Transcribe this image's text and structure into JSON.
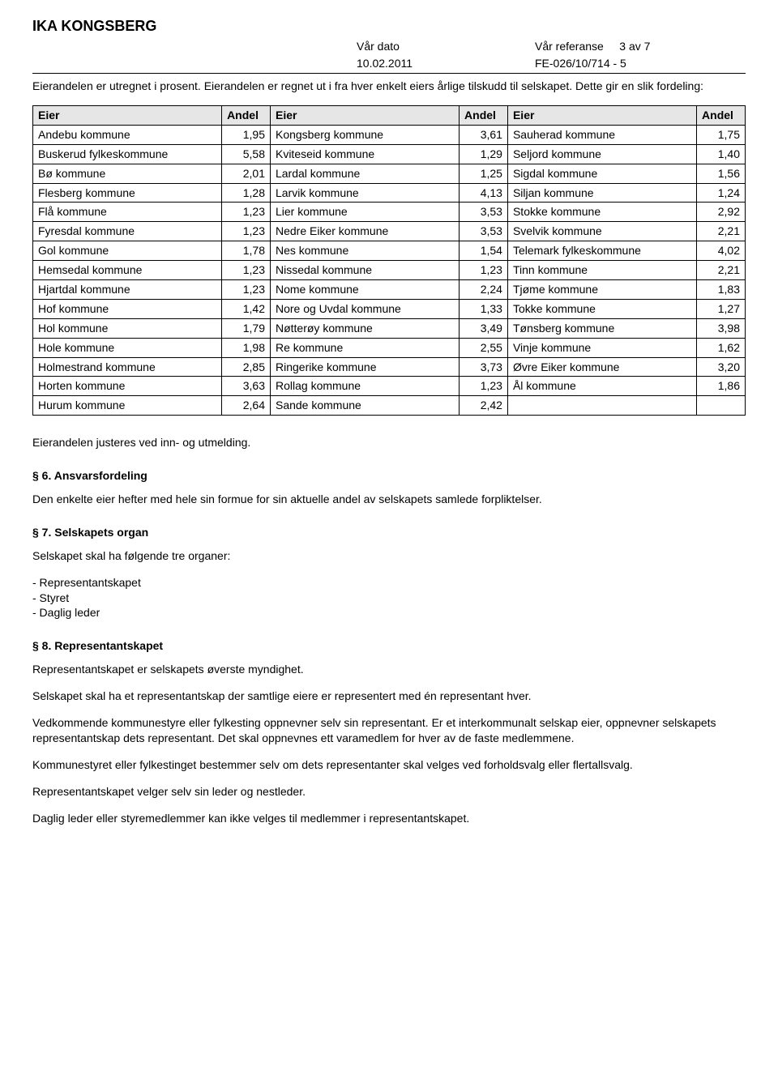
{
  "header": {
    "org": "IKA KONGSBERG",
    "date_label": "Vår dato",
    "date_value": "10.02.2011",
    "ref_label": "Vår referanse",
    "ref_value": "FE-026/10/714 - 5",
    "page": "3 av 7"
  },
  "intro": {
    "line1": "Eierandelen er utregnet i prosent. Eierandelen er regnet ut i fra hver enkelt eiers årlige tilskudd til selskapet. Dette gir en slik fordeling:"
  },
  "table": {
    "header_bg": "#e6e6e6",
    "border_color": "#000000",
    "columns": [
      "Eier",
      "Andel",
      "Eier",
      "Andel",
      "Eier",
      "Andel"
    ],
    "rows": [
      [
        "Andebu kommune",
        "1,95",
        "Kongsberg kommune",
        "3,61",
        "Sauherad kommune",
        "1,75"
      ],
      [
        "Buskerud fylkeskommune",
        "5,58",
        "Kviteseid kommune",
        "1,29",
        "Seljord kommune",
        "1,40"
      ],
      [
        "Bø kommune",
        "2,01",
        "Lardal kommune",
        "1,25",
        "Sigdal kommune",
        "1,56"
      ],
      [
        "Flesberg kommune",
        "1,28",
        "Larvik kommune",
        "4,13",
        "Siljan kommune",
        "1,24"
      ],
      [
        "Flå kommune",
        "1,23",
        "Lier kommune",
        "3,53",
        "Stokke kommune",
        "2,92"
      ],
      [
        "Fyresdal kommune",
        "1,23",
        "Nedre Eiker kommune",
        "3,53",
        "Svelvik kommune",
        "2,21"
      ],
      [
        "Gol kommune",
        "1,78",
        "Nes kommune",
        "1,54",
        "Telemark fylkeskommune",
        "4,02"
      ],
      [
        "Hemsedal kommune",
        "1,23",
        "Nissedal kommune",
        "1,23",
        "Tinn kommune",
        "2,21"
      ],
      [
        "Hjartdal kommune",
        "1,23",
        "Nome kommune",
        "2,24",
        "Tjøme kommune",
        "1,83"
      ],
      [
        "Hof kommune",
        "1,42",
        "Nore og Uvdal kommune",
        "1,33",
        "Tokke kommune",
        "1,27"
      ],
      [
        "Hol kommune",
        "1,79",
        "Nøtterøy kommune",
        "3,49",
        "Tønsberg kommune",
        "3,98"
      ],
      [
        "Hole kommune",
        "1,98",
        "Re kommune",
        "2,55",
        "Vinje kommune",
        "1,62"
      ],
      [
        "Holmestrand kommune",
        "2,85",
        "Ringerike kommune",
        "3,73",
        "Øvre Eiker kommune",
        "3,20"
      ],
      [
        "Horten kommune",
        "3,63",
        "Rollag kommune",
        "1,23",
        "Ål kommune",
        "1,86"
      ],
      [
        "Hurum kommune",
        "2,64",
        "Sande kommune",
        "2,42",
        "",
        ""
      ]
    ]
  },
  "after_table": "Eierandelen justeres ved inn- og utmelding.",
  "s6": {
    "title": "§ 6. Ansvarsfordeling",
    "body": "Den enkelte eier hefter med hele sin formue for sin aktuelle andel av selskapets samlede forpliktelser."
  },
  "s7": {
    "title": "§ 7. Selskapets organ",
    "lead": "Selskapet skal ha følgende tre organer:",
    "items": [
      "- Representantskapet",
      "- Styret",
      "- Daglig leder"
    ]
  },
  "s8": {
    "title": "§ 8. Representantskapet",
    "p1": "Representantskapet er selskapets øverste myndighet.",
    "p2": "Selskapet skal ha et representantskap der samtlige eiere er representert med én representant hver.",
    "p3": "Vedkommende kommunestyre eller fylkesting oppnevner selv sin representant. Er et interkommunalt selskap eier, oppnevner selskapets representantskap dets representant. Det skal oppnevnes ett varamedlem for hver av de faste medlemmene.",
    "p4": "Kommunestyret eller fylkestinget bestemmer selv om dets representanter skal velges ved forholdsvalg eller flertallsvalg.",
    "p5": "Representantskapet velger selv sin leder og nestleder.",
    "p6": "Daglig leder eller styremedlemmer kan ikke velges til medlemmer i representantskapet."
  }
}
